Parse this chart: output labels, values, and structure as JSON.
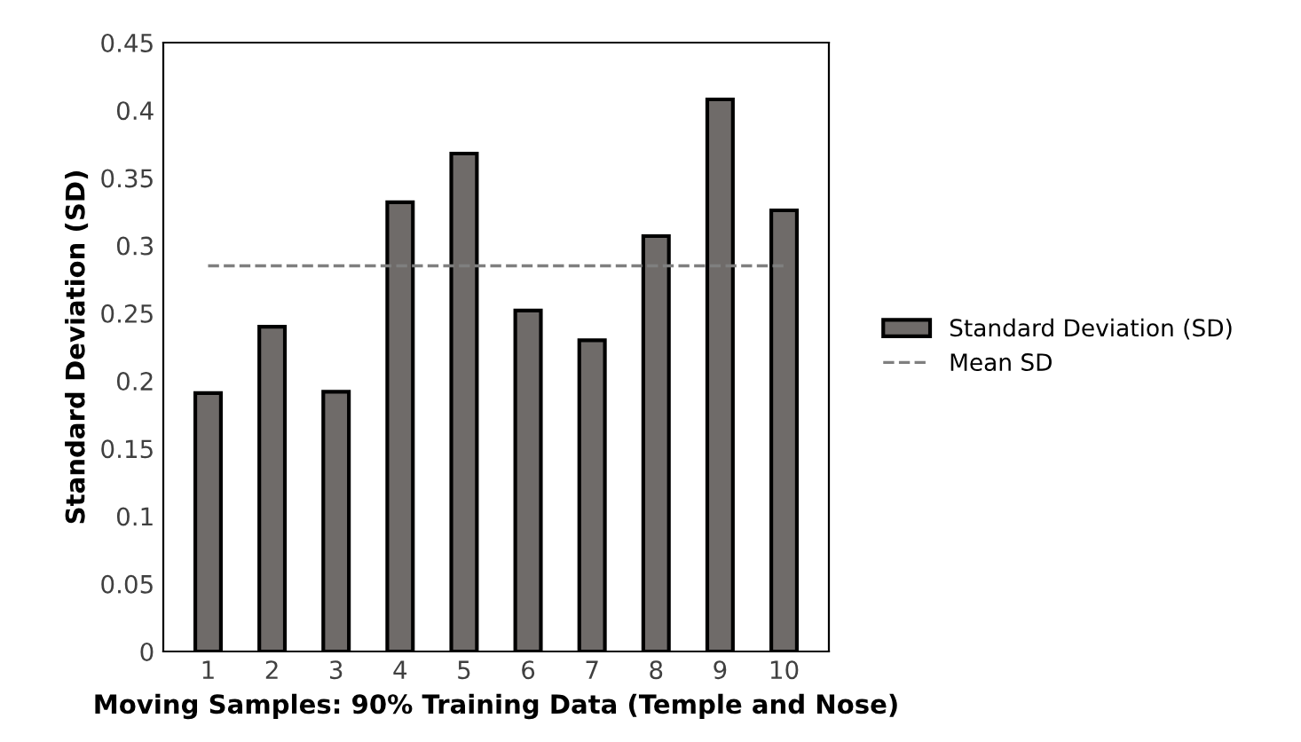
{
  "chart_data": {
    "type": "bar",
    "xlabel": "Moving Samples: 90% Training Data (Temple and Nose)",
    "ylabel": "Standard Deviation (SD)",
    "categories": [
      "1",
      "2",
      "3",
      "4",
      "5",
      "6",
      "7",
      "8",
      "9",
      "10"
    ],
    "series": [
      {
        "name": "Standard Deviation (SD)",
        "color": "#6f6b69",
        "values": [
          0.191,
          0.24,
          0.192,
          0.332,
          0.368,
          0.252,
          0.23,
          0.307,
          0.408,
          0.326
        ]
      },
      {
        "name": "Mean SD",
        "type": "line",
        "line_style": "dashed",
        "color": "#7f7f7f",
        "values": [
          0.285,
          0.285,
          0.285,
          0.285,
          0.285,
          0.285,
          0.285,
          0.285,
          0.285,
          0.285
        ]
      }
    ],
    "ylim": [
      0,
      0.45
    ],
    "yticks": [
      0,
      0.05,
      0.1,
      0.15,
      0.2,
      0.25,
      0.3,
      0.35,
      0.4,
      0.45
    ],
    "grid": false,
    "legend": "right"
  }
}
